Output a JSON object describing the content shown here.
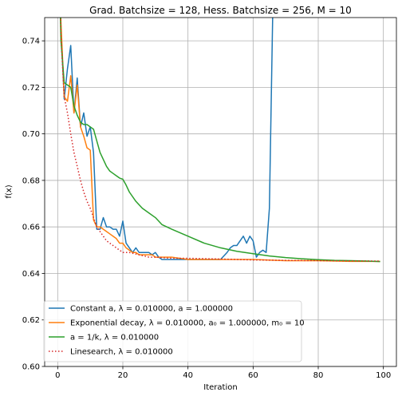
{
  "chart_data": {
    "type": "line",
    "title": "Grad. Batchsize = 128, Hess. Batchsize = 256, M = 10",
    "xlabel": "Iteration",
    "ylabel": "f(x)",
    "xlim": [
      -4,
      104
    ],
    "ylim": [
      0.6,
      0.75
    ],
    "grid": true,
    "legend_position": "lower-left",
    "x_ticks": [
      0,
      20,
      40,
      60,
      80,
      100
    ],
    "x_tick_labels": [
      "0",
      "20",
      "40",
      "60",
      "80",
      "100"
    ],
    "y_ticks": [
      0.6,
      0.62,
      0.64,
      0.66,
      0.68,
      0.7,
      0.72,
      0.74
    ],
    "y_tick_labels": [
      "0.60",
      "0.62",
      "0.64",
      "0.66",
      "0.68",
      "0.70",
      "0.72",
      "0.74"
    ],
    "series": [
      {
        "name": "Constant a, λ = 0.010000, a = 1.000000",
        "color": "#1f77b4",
        "dash": "solid",
        "x": [
          0,
          1,
          2,
          3,
          4,
          5,
          6,
          7,
          8,
          9,
          10,
          11,
          12,
          13,
          14,
          15,
          16,
          17,
          18,
          19,
          20,
          21,
          22,
          23,
          24,
          25,
          26,
          27,
          28,
          29,
          30,
          31,
          32,
          35,
          40,
          45,
          50,
          52,
          53,
          54,
          55,
          56,
          57,
          58,
          59,
          60,
          61,
          62,
          63,
          64,
          65,
          66,
          67
        ],
        "y": [
          0.8,
          0.745,
          0.715,
          0.728,
          0.738,
          0.709,
          0.724,
          0.703,
          0.709,
          0.699,
          0.703,
          0.692,
          0.659,
          0.659,
          0.664,
          0.66,
          0.66,
          0.659,
          0.659,
          0.656,
          0.6625,
          0.653,
          0.651,
          0.649,
          0.651,
          0.649,
          0.649,
          0.649,
          0.649,
          0.648,
          0.649,
          0.647,
          0.646,
          0.646,
          0.646,
          0.646,
          0.646,
          0.649,
          0.651,
          0.652,
          0.652,
          0.654,
          0.656,
          0.653,
          0.656,
          0.654,
          0.647,
          0.649,
          0.65,
          0.649,
          0.668,
          0.75,
          0.8
        ]
      },
      {
        "name": "Exponential decay, λ = 0.010000, a₀ = 1.000000, m₀ = 10",
        "color": "#ff7f0e",
        "dash": "solid",
        "x": [
          0,
          1,
          2,
          3,
          4,
          5,
          6,
          7,
          8,
          9,
          10,
          11,
          12,
          13,
          14,
          15,
          16,
          17,
          18,
          19,
          20,
          21,
          22,
          23,
          24,
          25,
          26,
          27,
          28,
          29,
          30,
          35,
          40,
          50,
          60,
          70,
          80,
          90,
          99
        ],
        "y": [
          0.8,
          0.748,
          0.716,
          0.714,
          0.725,
          0.709,
          0.721,
          0.703,
          0.699,
          0.694,
          0.693,
          0.663,
          0.66,
          0.66,
          0.659,
          0.658,
          0.657,
          0.656,
          0.655,
          0.653,
          0.653,
          0.651,
          0.65,
          0.649,
          0.649,
          0.648,
          0.648,
          0.648,
          0.648,
          0.648,
          0.647,
          0.647,
          0.646,
          0.646,
          0.646,
          0.6455,
          0.6455,
          0.6452,
          0.6452
        ]
      },
      {
        "name": "a = 1/k, λ = 0.010000",
        "color": "#2ca02c",
        "dash": "solid",
        "x": [
          0,
          1,
          2,
          3,
          4,
          5,
          6,
          7,
          8,
          9,
          10,
          11,
          12,
          13,
          14,
          15,
          16,
          17,
          18,
          19,
          20,
          21,
          22,
          24,
          26,
          28,
          30,
          32,
          35,
          40,
          45,
          50,
          55,
          60,
          65,
          70,
          75,
          80,
          85,
          90,
          95,
          99
        ],
        "y": [
          0.8,
          0.74,
          0.722,
          0.721,
          0.72,
          0.712,
          0.708,
          0.705,
          0.704,
          0.704,
          0.703,
          0.702,
          0.697,
          0.692,
          0.689,
          0.686,
          0.684,
          0.683,
          0.682,
          0.681,
          0.6805,
          0.678,
          0.675,
          0.671,
          0.668,
          0.666,
          0.664,
          0.661,
          0.659,
          0.656,
          0.653,
          0.651,
          0.6495,
          0.6485,
          0.6475,
          0.6468,
          0.6463,
          0.6459,
          0.6456,
          0.6455,
          0.6453,
          0.6451
        ]
      },
      {
        "name": "Linesearch, λ = 0.010000",
        "color": "#d62728",
        "dash": "dotted",
        "x": [
          0,
          1,
          2,
          3,
          4,
          5,
          6,
          7,
          8,
          9,
          10,
          11,
          12,
          13,
          14,
          15,
          16,
          17,
          18,
          20,
          22,
          25,
          28,
          30,
          35,
          40,
          50,
          60,
          70,
          80,
          90,
          99
        ],
        "y": [
          0.8,
          0.742,
          0.716,
          0.709,
          0.7,
          0.692,
          0.686,
          0.68,
          0.675,
          0.671,
          0.668,
          0.664,
          0.66,
          0.658,
          0.656,
          0.654,
          0.653,
          0.652,
          0.651,
          0.649,
          0.649,
          0.648,
          0.647,
          0.647,
          0.6465,
          0.6465,
          0.6462,
          0.6458,
          0.6456,
          0.6455,
          0.6454,
          0.6453
        ]
      }
    ]
  }
}
